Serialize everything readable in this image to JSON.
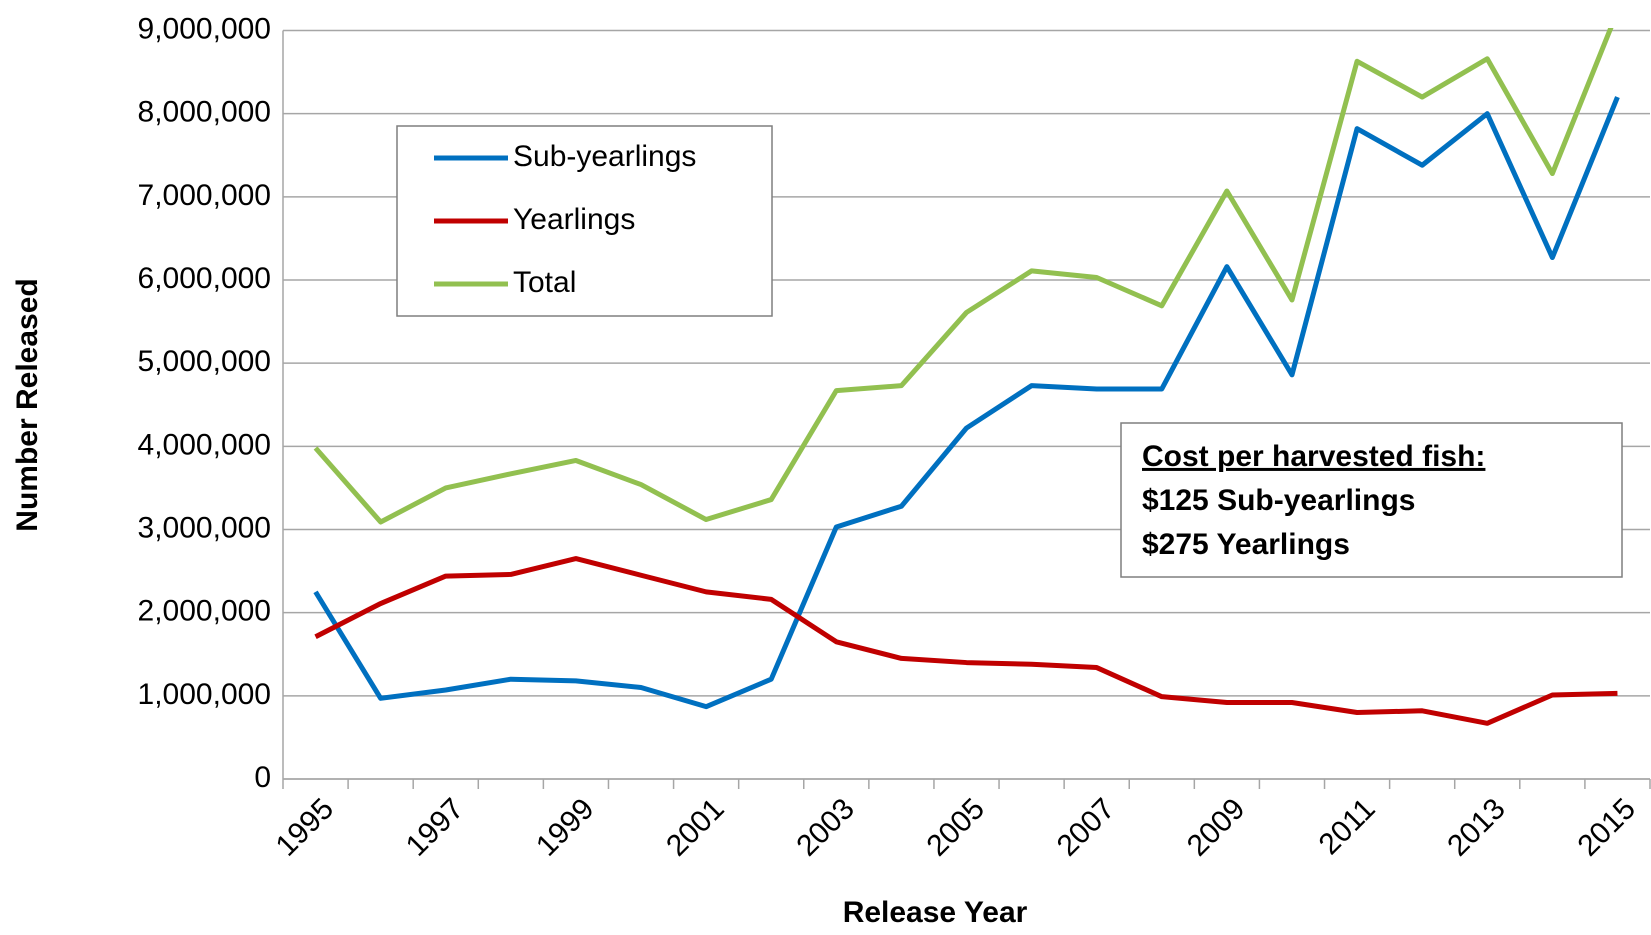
{
  "chart_data": {
    "type": "line",
    "x_label": "Release Year",
    "y_label": "Number Released",
    "categories": [
      "1995",
      null,
      "1997",
      null,
      "1999",
      null,
      "2001",
      null,
      "2003",
      null,
      "2005",
      null,
      "2007",
      null,
      "2009",
      null,
      "2011",
      null,
      "2013",
      null,
      "2015"
    ],
    "series": [
      {
        "name": "Sub-yearlings",
        "color": "#0070c0",
        "values": [
          2250000,
          970000,
          1070000,
          1200000,
          1180000,
          1100000,
          870000,
          1200000,
          3030000,
          3280000,
          4220000,
          4730000,
          4690000,
          4690000,
          6160000,
          4860000,
          7820000,
          7380000,
          8000000,
          6270000,
          8200000
        ]
      },
      {
        "name": "Yearlings",
        "color": "#c00000",
        "values": [
          1710000,
          2110000,
          2440000,
          2460000,
          2650000,
          2450000,
          2250000,
          2160000,
          1650000,
          1450000,
          1400000,
          1380000,
          1340000,
          990000,
          920000,
          920000,
          800000,
          820000,
          670000,
          1010000,
          1030000
        ]
      },
      {
        "name": "Total",
        "color": "#92c050",
        "values": [
          3980000,
          3090000,
          3500000,
          3670000,
          3830000,
          3540000,
          3120000,
          3360000,
          4670000,
          4730000,
          5610000,
          6110000,
          6030000,
          5690000,
          7070000,
          5760000,
          8630000,
          8200000,
          8660000,
          7280000,
          9230000
        ]
      }
    ],
    "ylim": [
      0,
      9000000
    ],
    "yticks": [
      0,
      {
        "value": 1000000,
        "label": "1,000,000"
      },
      {
        "value": 2000000,
        "label": "2,000,000"
      },
      {
        "value": 3000000,
        "label": "3,000,000"
      },
      {
        "value": 4000000,
        "label": "4,000,000"
      },
      {
        "value": 5000000,
        "label": "5,000,000"
      },
      {
        "value": 6000000,
        "label": "6,000,000"
      },
      {
        "value": 7000000,
        "label": "7,000,000"
      },
      {
        "value": 8000000,
        "label": "8,000,000"
      },
      {
        "value": 9000000,
        "label": "9,000,000"
      }
    ],
    "grid": true,
    "legend": "upper left",
    "annotation": [
      "Cost per harvested fish:",
      "$125 Sub-yearlings",
      "$275 Yearlings"
    ]
  }
}
